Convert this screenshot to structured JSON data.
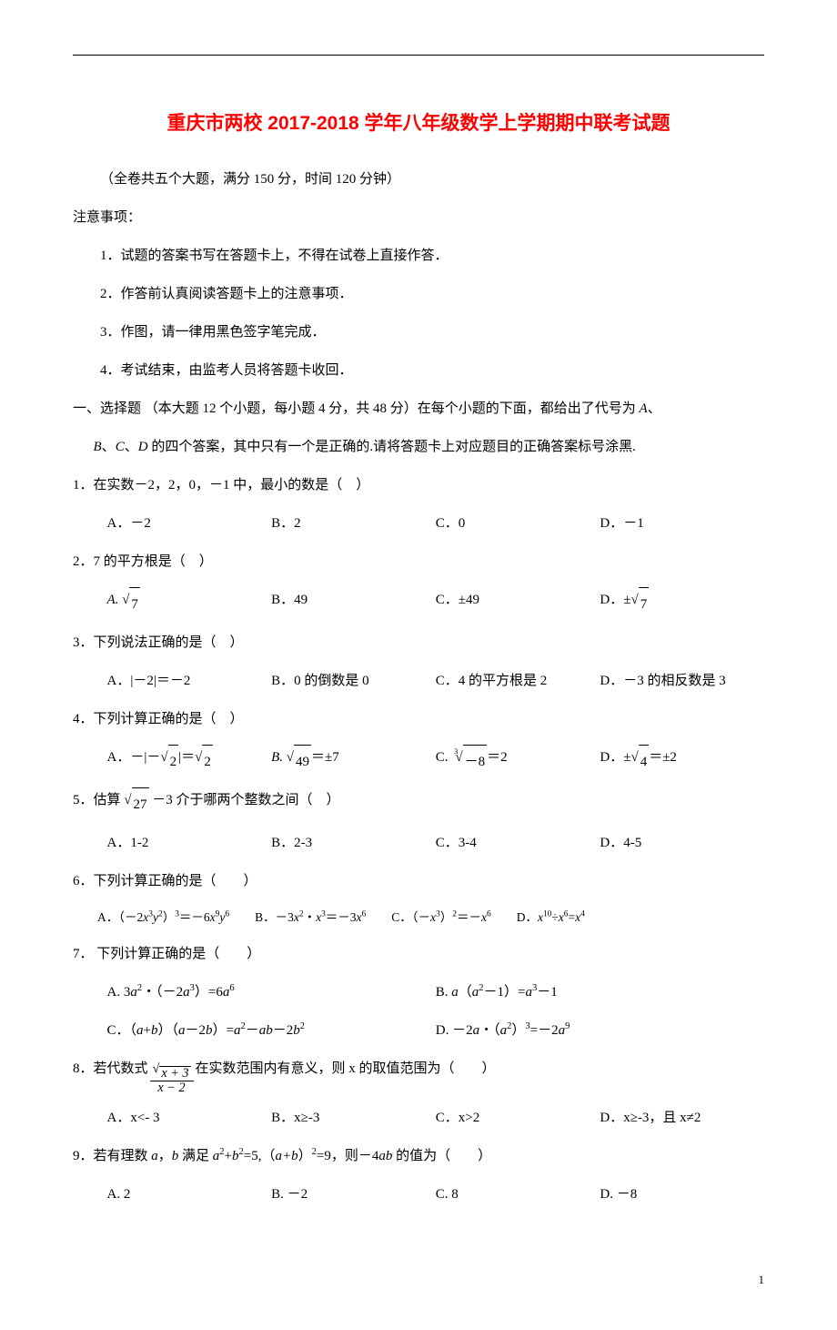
{
  "title": "重庆市两校 2017-2018 学年八年级数学上学期期中联考试题",
  "subtitle": "（全卷共五个大题，满分 150 分，时间 120 分钟）",
  "notice_header": "注意事项：",
  "notices": [
    "1．试题的答案书写在答题卡上，不得在试卷上直接作答．",
    "2．作答前认真阅读答题卡上的注意事项．",
    "3．作图，请一律用黑色签字笔完成．",
    "4．考试结束，由监考人员将答题卡收回．"
  ],
  "section1_line1": "一、选择题 （本大题 12 个小题，每小题 4 分，共 48 分）在每个小题的下面，都给出了代号为 ",
  "section1_line1_tail": "、",
  "section1_line2_part1": "、",
  "section1_line2_part2": "、",
  "section1_line2_part3": " 的四个答案，其中只有一个是正确的.请将答题卡上对应题目的正确答案标号涂黑.",
  "letters": {
    "A": "A",
    "B": "B",
    "C": "C",
    "D": "D"
  },
  "q1": {
    "text": "1．在实数－2，2，0，－1 中，最小的数是（　）",
    "opts": [
      "A．－2",
      "B．2",
      "C．0",
      "D．－1"
    ]
  },
  "q2": {
    "text": "2．7 的平方根是（　）",
    "optA_prefix": "A. ",
    "optB": "B．49",
    "optC": "C．±49",
    "optD_prefix": "D．±"
  },
  "q3": {
    "text": "3．下列说法正确的是（　）",
    "opts": [
      "A．|－2|＝－2",
      "B．0 的倒数是 0",
      "C．4 的平方根是 2",
      "D．－3 的相反数是 3"
    ]
  },
  "q4": {
    "text": "4．下列计算正确的是（　）",
    "optA_prefix": "A．－|－",
    "optA_mid": "|＝",
    "optB_prefix": "B. ",
    "optB_suffix": "＝±7",
    "optC_prefix": "C. ",
    "optC_suffix": "＝2",
    "optD_prefix": "D．±",
    "optD_suffix": "＝±2"
  },
  "q5": {
    "text_prefix": "5．估算 ",
    "text_suffix": " －3 介于哪两个整数之间（　）",
    "opts": [
      "A．1-2",
      "B．2-3",
      "C．3-4",
      "D．4-5"
    ]
  },
  "q6": {
    "text": "6．下列计算正确的是（　　）"
  },
  "q7": {
    "text": "7． 下列计算正确的是（　　）"
  },
  "q8": {
    "text_prefix": "8．若代数式 ",
    "text_suffix": " 在实数范围内有意义，则 x 的取值范围为（　　）",
    "opts": [
      "A．x<- 3",
      "B．x≥-3",
      "C．x>2",
      "D．x≥-3，且 x≠2"
    ]
  },
  "q9": {
    "text_prefix": "9．若有理数 ",
    "text_mid1": "，",
    "text_mid2": " 满足 ",
    "text_mid3": "=5,（",
    "text_mid4": "）",
    "text_mid5": "=9，则－4",
    "text_suffix": " 的值为（　　）",
    "opts": [
      "A. 2",
      "B. －2",
      "C. 8",
      "D. －8"
    ]
  },
  "math": {
    "sqrt7": "7",
    "sqrt2": "2",
    "sqrt49": "49",
    "neg8": "－8",
    "sqrt4": "4",
    "sqrt27": "27",
    "sqrtx3": "x + 3",
    "xminus2": "x − 2",
    "a": "a",
    "b": "b",
    "ab": "ab",
    "aplusb": "a+b",
    "sq": "2"
  },
  "page_number": "1"
}
